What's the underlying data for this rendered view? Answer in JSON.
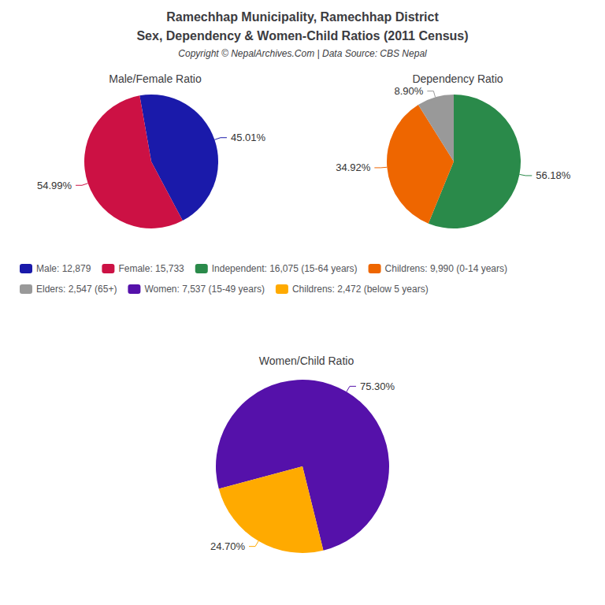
{
  "title": "Ramechhap Municipality, Ramechhap District",
  "subtitle": "Sex, Dependency & Women-Child Ratios (2011 Census)",
  "annotations": [
    "Copyright © NepalArchives.Com | Data Source: CBS Nepal"
  ],
  "chart_data": [
    {
      "type": "pie",
      "title": "Male/Female Ratio",
      "categories": [
        "Male: 12,879",
        "Female: 15,733"
      ],
      "values": [
        45.01,
        54.99
      ],
      "value_labels": [
        "45.01%",
        "54.99%"
      ],
      "colors": [
        "#1a1aaa",
        "#cc1144"
      ],
      "data_labels": true,
      "legend": true
    },
    {
      "type": "pie",
      "title": "Dependency Ratio",
      "categories": [
        "Independent: 16,075 (15-64 years)",
        "Childrens: 9,990 (0-14 years)",
        "Elders: 2,547 (65+)"
      ],
      "values": [
        56.18,
        34.92,
        8.9
      ],
      "value_labels": [
        "56.18%",
        "34.92%",
        "8.90%"
      ],
      "colors": [
        "#2a8a4a",
        "#ee6600",
        "#999999"
      ],
      "data_labels": true,
      "legend": true
    },
    {
      "type": "pie",
      "title": "Women/Child Ratio",
      "categories": [
        "Women: 7,537 (15-49 years)",
        "Childrens: 2,472 (below 5 years)"
      ],
      "values": [
        75.3,
        24.7
      ],
      "value_labels": [
        "75.30%",
        "24.70%"
      ],
      "colors": [
        "#5511aa",
        "#ffaa00"
      ],
      "data_labels": true,
      "legend": true
    }
  ]
}
